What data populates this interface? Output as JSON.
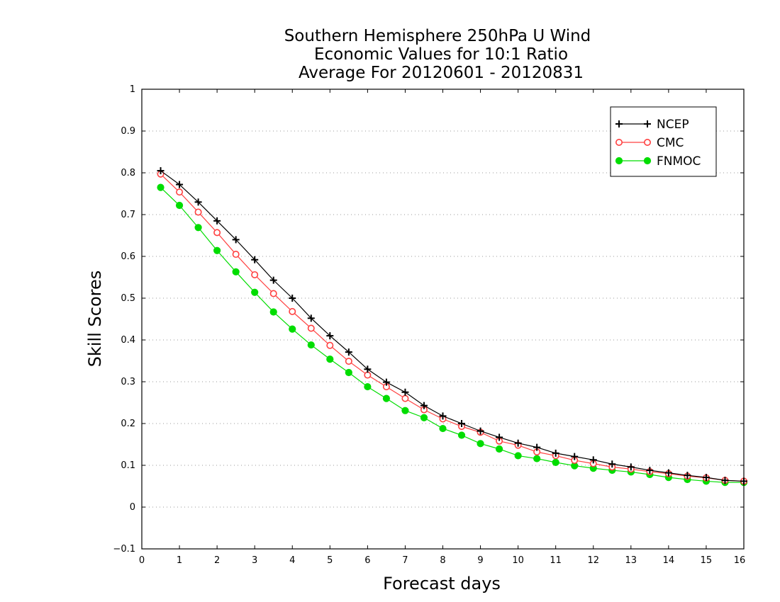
{
  "chart_data": {
    "type": "line",
    "title": [
      "Southern Hemisphere 250hPa U Wind",
      "Economic Values for 10:1 Ratio",
      "Average For 20120601 - 20120831"
    ],
    "xlabel": "Forecast days",
    "ylabel": "Skill Scores",
    "xlim": [
      0,
      16
    ],
    "ylim": [
      -0.1,
      1
    ],
    "xticks": [
      "0",
      "1",
      "2",
      "3",
      "4",
      "5",
      "6",
      "7",
      "8",
      "9",
      "10",
      "11",
      "12",
      "13",
      "14",
      "15",
      "16"
    ],
    "yticks": [
      "−0.1",
      "0",
      "0.1",
      "0.2",
      "0.3",
      "0.4",
      "0.5",
      "0.6",
      "0.7",
      "0.8",
      "0.9",
      "1"
    ],
    "grid": "horizontal dotted",
    "legend_position": "top-right",
    "x": [
      0.5,
      1,
      1.5,
      2,
      2.5,
      3,
      3.5,
      4,
      4.5,
      5,
      5.5,
      6,
      6.5,
      7,
      7.5,
      8,
      8.5,
      9,
      9.5,
      10,
      10.5,
      11,
      11.5,
      12,
      12.5,
      13,
      13.5,
      14,
      14.5,
      15,
      15.5,
      16
    ],
    "series": [
      {
        "name": "NCEP",
        "color": "#000000",
        "marker": "plus",
        "values": [
          0.805,
          0.772,
          0.73,
          0.685,
          0.64,
          0.592,
          0.543,
          0.5,
          0.452,
          0.41,
          0.371,
          0.33,
          0.299,
          0.275,
          0.243,
          0.218,
          0.2,
          0.182,
          0.167,
          0.153,
          0.143,
          0.129,
          0.121,
          0.113,
          0.103,
          0.096,
          0.088,
          0.082,
          0.076,
          0.071,
          0.064,
          0.062
        ]
      },
      {
        "name": "CMC",
        "color": "#ff4040",
        "marker": "open-circle",
        "values": [
          0.797,
          0.754,
          0.706,
          0.657,
          0.605,
          0.556,
          0.511,
          0.468,
          0.428,
          0.387,
          0.349,
          0.316,
          0.288,
          0.26,
          0.233,
          0.211,
          0.193,
          0.179,
          0.158,
          0.148,
          0.132,
          0.123,
          0.112,
          0.104,
          0.096,
          0.091,
          0.085,
          0.08,
          0.074,
          0.07,
          0.064,
          0.062
        ]
      },
      {
        "name": "FNMOC",
        "color": "#00dd00",
        "marker": "filled-circle",
        "values": [
          0.765,
          0.722,
          0.669,
          0.614,
          0.563,
          0.514,
          0.467,
          0.426,
          0.388,
          0.354,
          0.322,
          0.288,
          0.26,
          0.231,
          0.214,
          0.188,
          0.172,
          0.152,
          0.139,
          0.123,
          0.116,
          0.107,
          0.099,
          0.093,
          0.088,
          0.084,
          0.078,
          0.071,
          0.066,
          0.062,
          0.059,
          0.059
        ]
      }
    ]
  }
}
